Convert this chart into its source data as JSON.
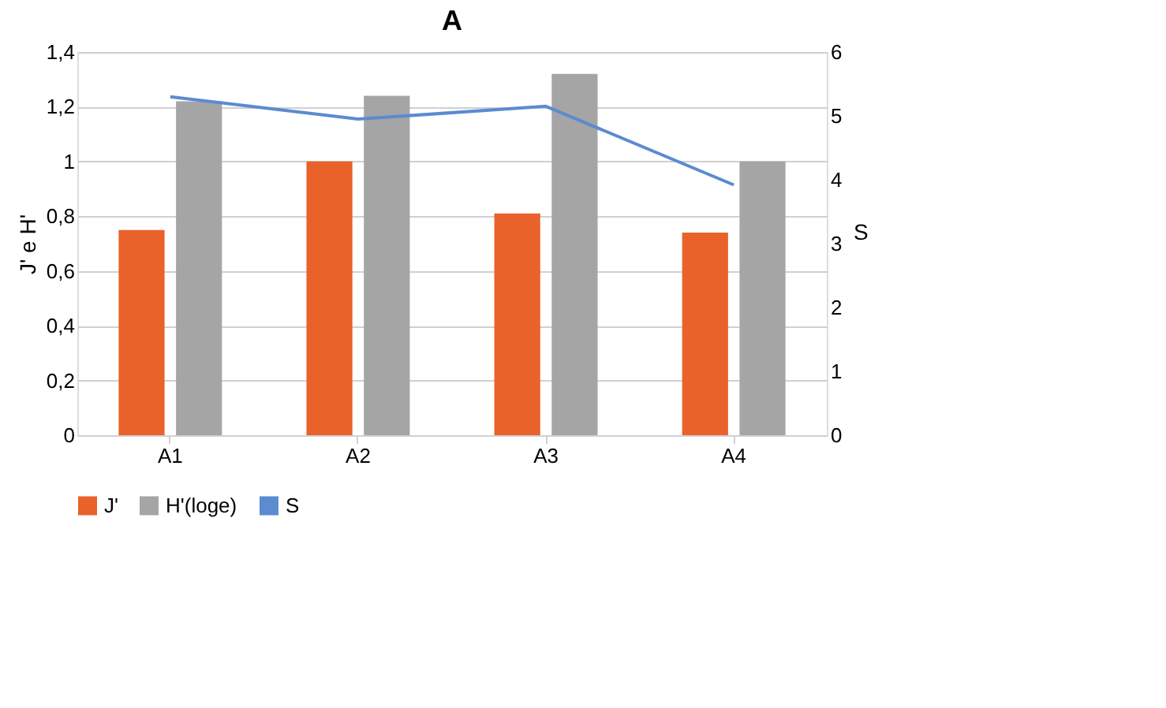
{
  "chart_data": {
    "type": "bar",
    "title": "A",
    "categories": [
      "A1",
      "A2",
      "A3",
      "A4"
    ],
    "series": [
      {
        "name": "J'",
        "color": "#e8622a",
        "values": [
          0.75,
          1.0,
          0.81,
          0.74
        ]
      },
      {
        "name": "H'(loge)",
        "color": "#a5a5a5",
        "values": [
          1.22,
          1.24,
          1.32,
          1.0
        ]
      },
      {
        "name": "S",
        "type": "line",
        "axis": "y2",
        "color": "#5b8bd0",
        "values": [
          5.3,
          4.95,
          5.15,
          3.92
        ]
      }
    ],
    "ylabel": "J' e H'",
    "y2label": "S",
    "ylim": [
      0,
      1.4
    ],
    "yticks": [
      0,
      {
        "value": 0.2,
        "label": "0,2"
      },
      {
        "value": 0.4,
        "label": "0,4"
      },
      {
        "value": 0.6,
        "label": "0,6"
      },
      {
        "value": 0.8,
        "label": "0,8"
      },
      1,
      {
        "value": 1.2,
        "label": "1,2"
      },
      {
        "value": 1.4,
        "label": "1,4"
      }
    ],
    "y2lim": [
      0,
      6
    ],
    "y2ticks": [
      0,
      1,
      2,
      3,
      4,
      5,
      6
    ],
    "grid": "y",
    "legend": "bottom",
    "marker": "none",
    "line_style": "solid"
  }
}
